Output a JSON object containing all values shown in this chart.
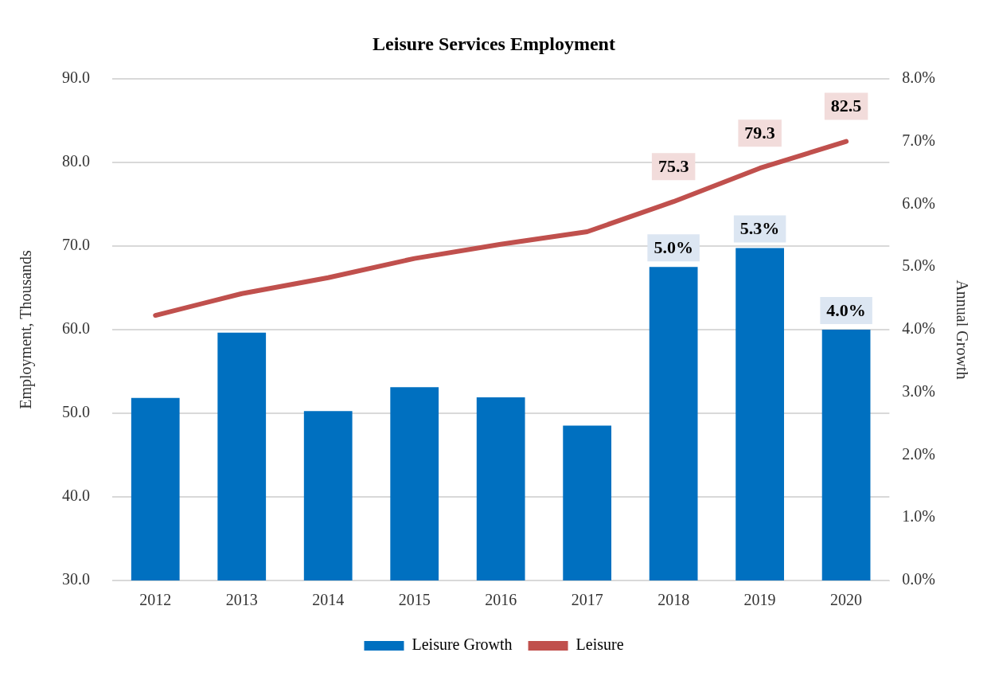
{
  "chart_data": {
    "type": "bar",
    "title": "Leisure Services Employment",
    "ylabel": "Employment, Thousands",
    "y2label": "Annual Growth",
    "categories": [
      "2012",
      "2013",
      "2014",
      "2015",
      "2016",
      "2017",
      "2018",
      "2019",
      "2020"
    ],
    "series": [
      {
        "name": "Leisure Growth",
        "axis": "y2",
        "color": "#0070c0",
        "values": [
          2.91,
          3.95,
          2.7,
          3.08,
          2.92,
          2.47,
          5.0,
          5.3,
          4.0
        ],
        "value_labels": [
          null,
          null,
          null,
          null,
          null,
          null,
          "5.0%",
          "5.3%",
          "4.0%"
        ]
      },
      {
        "name": "Leisure",
        "type": "line",
        "axis": "y",
        "color": "#c0504d",
        "values": [
          61.7,
          64.3,
          66.2,
          68.5,
          70.2,
          71.7,
          75.3,
          79.3,
          82.5
        ],
        "value_labels": [
          null,
          null,
          null,
          null,
          null,
          null,
          "75.3",
          "79.3",
          "82.5"
        ]
      }
    ],
    "ylim": [
      30,
      90
    ],
    "yticks": [
      {
        "value": 30,
        "label": "30.0"
      },
      {
        "value": 40,
        "label": "40.0"
      },
      {
        "value": 50,
        "label": "50.0"
      },
      {
        "value": 60,
        "label": "60.0"
      },
      {
        "value": 70,
        "label": "70.0"
      },
      {
        "value": 80,
        "label": "80.0"
      },
      {
        "value": 90,
        "label": "90.0"
      }
    ],
    "y2lim": [
      0,
      8
    ],
    "y2ticks": [
      {
        "value": 0,
        "label": "0.0%"
      },
      {
        "value": 1,
        "label": "1.0%"
      },
      {
        "value": 2,
        "label": "2.0%"
      },
      {
        "value": 3,
        "label": "3.0%"
      },
      {
        "value": 4,
        "label": "4.0%"
      },
      {
        "value": 5,
        "label": "5.0%"
      },
      {
        "value": 6,
        "label": "6.0%"
      },
      {
        "value": 7,
        "label": "7.0%"
      },
      {
        "value": 8,
        "label": "8.0%"
      }
    ],
    "grid": "y",
    "legend": "bottom",
    "marker": "none"
  }
}
